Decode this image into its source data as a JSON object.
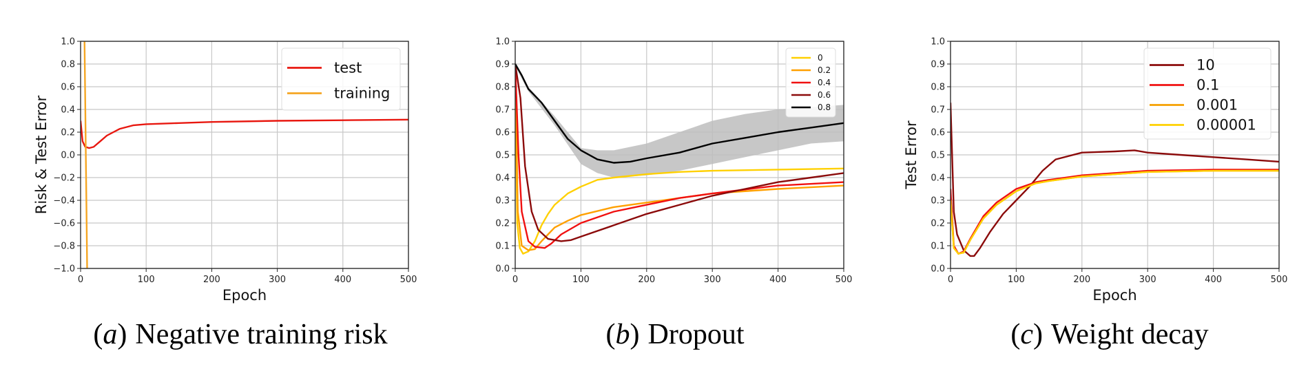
{
  "chart_data": [
    {
      "type": "line",
      "caption_label": "a",
      "caption_text": "Negative training risk",
      "xlabel": "Epoch",
      "ylabel": "Risk & Test Error",
      "xlim": [
        0,
        500
      ],
      "ylim": [
        -1.0,
        1.0
      ],
      "xticks": [
        0,
        100,
        200,
        300,
        400,
        500
      ],
      "yticks": [
        -1.0,
        -0.8,
        -0.6,
        -0.4,
        -0.2,
        0.0,
        0.2,
        0.4,
        0.6,
        0.8,
        1.0
      ],
      "ytick_labels": [
        "−1.0",
        "−0.8",
        "−0.6",
        "−0.4",
        "−0.2",
        "0.0",
        "0.2",
        "0.4",
        "0.6",
        "0.8",
        "1.0"
      ],
      "grid": true,
      "legend": "top-right",
      "legend_size": "big",
      "series": [
        {
          "name": "test",
          "color": "#e8170f",
          "x": [
            0,
            3,
            7,
            13,
            20,
            30,
            40,
            50,
            60,
            80,
            100,
            150,
            200,
            300,
            400,
            500
          ],
          "y": [
            0.3,
            0.12,
            0.07,
            0.06,
            0.07,
            0.12,
            0.17,
            0.2,
            0.23,
            0.26,
            0.27,
            0.28,
            0.29,
            0.3,
            0.305,
            0.31
          ]
        },
        {
          "name": "training",
          "color": "#f5a623",
          "x": [
            5,
            6,
            7,
            8,
            9,
            10
          ],
          "y": [
            1.3,
            1.0,
            0.5,
            0.0,
            -0.5,
            -1.0
          ]
        }
      ]
    },
    {
      "type": "line",
      "caption_label": "b",
      "caption_text": "Dropout",
      "xlabel": "",
      "ylabel": "",
      "xlim": [
        0,
        500
      ],
      "ylim": [
        0.0,
        1.0
      ],
      "xticks": [
        0,
        100,
        200,
        300,
        400,
        500
      ],
      "yticks": [
        0.0,
        0.1,
        0.2,
        0.3,
        0.4,
        0.5,
        0.6,
        0.7,
        0.8,
        0.9,
        1.0
      ],
      "ytick_labels": [
        "0.0",
        "0.1",
        "0.2",
        "0.3",
        "0.4",
        "0.5",
        "0.6",
        "0.7",
        "0.8",
        "0.9",
        "1.0"
      ],
      "grid": true,
      "legend": "top-right",
      "legend_size": "small",
      "series": [
        {
          "name": "0",
          "color": "#ffd000",
          "x": [
            0,
            3,
            7,
            12,
            20,
            30,
            40,
            50,
            60,
            80,
            100,
            125,
            150,
            200,
            250,
            300,
            400,
            500
          ],
          "y": [
            0.9,
            0.2,
            0.09,
            0.065,
            0.075,
            0.12,
            0.19,
            0.24,
            0.28,
            0.33,
            0.36,
            0.39,
            0.4,
            0.415,
            0.425,
            0.43,
            0.435,
            0.44
          ]
        },
        {
          "name": "0.2",
          "color": "#ffa000",
          "x": [
            0,
            4,
            10,
            20,
            30,
            40,
            50,
            60,
            80,
            100,
            150,
            200,
            250,
            300,
            400,
            500
          ],
          "y": [
            0.9,
            0.25,
            0.1,
            0.08,
            0.085,
            0.12,
            0.15,
            0.18,
            0.21,
            0.235,
            0.27,
            0.29,
            0.31,
            0.33,
            0.35,
            0.365
          ]
        },
        {
          "name": "0.4",
          "color": "#f01010",
          "x": [
            0,
            5,
            10,
            20,
            30,
            45,
            55,
            70,
            100,
            150,
            200,
            250,
            300,
            400,
            500
          ],
          "y": [
            0.9,
            0.5,
            0.25,
            0.12,
            0.095,
            0.09,
            0.11,
            0.15,
            0.2,
            0.25,
            0.28,
            0.31,
            0.33,
            0.365,
            0.38
          ]
        },
        {
          "name": "0.6",
          "color": "#8b0a0a",
          "x": [
            0,
            8,
            15,
            25,
            35,
            50,
            70,
            85,
            100,
            150,
            200,
            250,
            300,
            350,
            400,
            450,
            500
          ],
          "y": [
            0.9,
            0.75,
            0.45,
            0.25,
            0.17,
            0.13,
            0.12,
            0.125,
            0.14,
            0.19,
            0.24,
            0.28,
            0.32,
            0.35,
            0.38,
            0.4,
            0.42
          ]
        },
        {
          "name": "0.8",
          "color": "#000000",
          "x": [
            0,
            10,
            20,
            40,
            60,
            80,
            100,
            125,
            150,
            175,
            200,
            250,
            300,
            350,
            400,
            450,
            500
          ],
          "y": [
            0.9,
            0.85,
            0.79,
            0.73,
            0.65,
            0.57,
            0.52,
            0.48,
            0.465,
            0.47,
            0.485,
            0.51,
            0.55,
            0.575,
            0.6,
            0.62,
            0.64
          ],
          "band_x": [
            0,
            20,
            60,
            100,
            125,
            150,
            200,
            250,
            300,
            350,
            400,
            450,
            500
          ],
          "band_upper": [
            0.91,
            0.8,
            0.67,
            0.53,
            0.52,
            0.52,
            0.55,
            0.6,
            0.65,
            0.68,
            0.7,
            0.71,
            0.72
          ],
          "band_lower": [
            0.89,
            0.78,
            0.63,
            0.46,
            0.42,
            0.4,
            0.41,
            0.43,
            0.46,
            0.49,
            0.52,
            0.55,
            0.56
          ]
        }
      ]
    },
    {
      "type": "line",
      "caption_label": "c",
      "caption_text": "Weight decay",
      "xlabel": "Epoch",
      "ylabel": "Test Error",
      "xlim": [
        0,
        500
      ],
      "ylim": [
        0.0,
        1.0
      ],
      "xticks": [
        0,
        100,
        200,
        300,
        400,
        500
      ],
      "yticks": [
        0.0,
        0.1,
        0.2,
        0.3,
        0.4,
        0.5,
        0.6,
        0.7,
        0.8,
        0.9,
        1.0
      ],
      "ytick_labels": [
        "0.0",
        "0.1",
        "0.2",
        "0.3",
        "0.4",
        "0.5",
        "0.6",
        "0.7",
        "0.8",
        "0.9",
        "1.0"
      ],
      "grid": true,
      "legend": "top-right",
      "legend_size": "big",
      "series": [
        {
          "name": "10",
          "color": "#8b0a0a",
          "x": [
            0,
            5,
            10,
            20,
            30,
            36,
            45,
            60,
            80,
            100,
            120,
            140,
            160,
            200,
            250,
            280,
            300,
            350,
            400,
            450,
            500
          ],
          "y": [
            0.73,
            0.25,
            0.15,
            0.08,
            0.055,
            0.055,
            0.09,
            0.16,
            0.24,
            0.3,
            0.36,
            0.43,
            0.48,
            0.51,
            0.515,
            0.52,
            0.51,
            0.5,
            0.49,
            0.48,
            0.47
          ]
        },
        {
          "name": "0.1",
          "color": "#f01010",
          "x": [
            0,
            5,
            12,
            20,
            30,
            50,
            70,
            100,
            130,
            150,
            200,
            300,
            400,
            500
          ],
          "y": [
            0.35,
            0.1,
            0.065,
            0.075,
            0.13,
            0.23,
            0.29,
            0.35,
            0.38,
            0.39,
            0.41,
            0.43,
            0.435,
            0.435
          ]
        },
        {
          "name": "0.001",
          "color": "#f5a000",
          "x": [
            0,
            5,
            12,
            20,
            30,
            50,
            70,
            100,
            130,
            150,
            200,
            300,
            400,
            500
          ],
          "y": [
            0.3,
            0.09,
            0.065,
            0.07,
            0.125,
            0.22,
            0.28,
            0.34,
            0.375,
            0.385,
            0.405,
            0.425,
            0.43,
            0.43
          ]
        },
        {
          "name": "0.00001",
          "color": "#ffd000",
          "x": [
            0,
            5,
            12,
            20,
            30,
            50,
            70,
            100,
            130,
            150,
            200,
            300,
            400,
            500
          ],
          "y": [
            0.3,
            0.09,
            0.065,
            0.07,
            0.125,
            0.22,
            0.28,
            0.34,
            0.375,
            0.385,
            0.405,
            0.425,
            0.43,
            0.43
          ]
        }
      ]
    }
  ]
}
